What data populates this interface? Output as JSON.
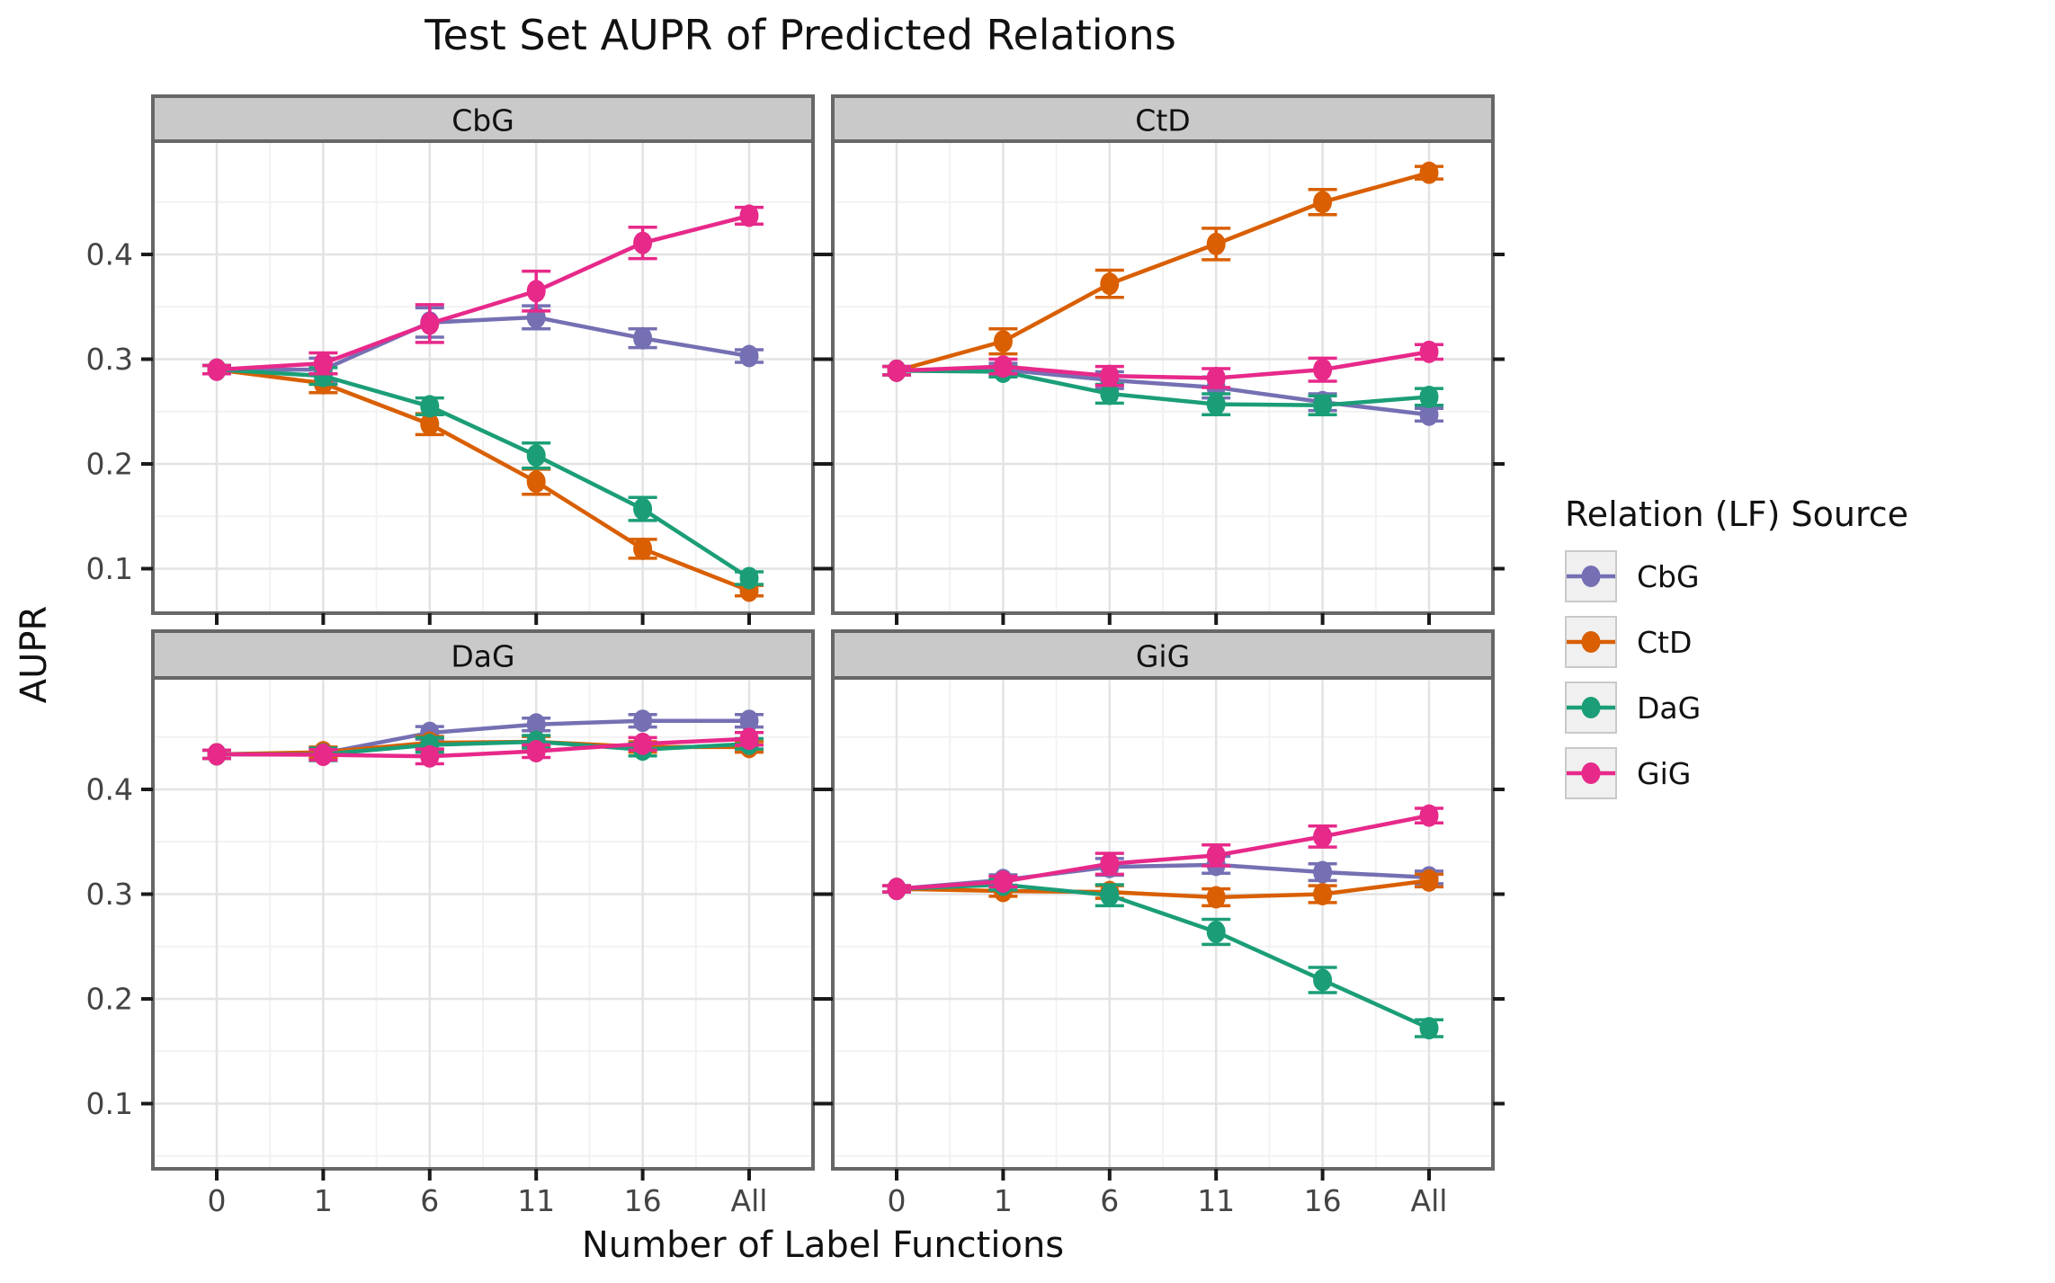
{
  "title": "Test Set AUPR of Predicted Relations",
  "axes": {
    "x_title": "Number of Label Functions",
    "y_title": "AUPR"
  },
  "legend": {
    "title": "Relation (LF) Source",
    "position": "right",
    "entries": [
      {
        "label": "CbG",
        "color": "#7570b3"
      },
      {
        "label": "CtD",
        "color": "#d95f02"
      },
      {
        "label": "DaG",
        "color": "#1b9e77"
      },
      {
        "label": "GiG",
        "color": "#e7298a"
      }
    ]
  },
  "style": {
    "panel_bg": "#ffffff",
    "panel_border": "#676767",
    "strip_bg": "#c9c9c9",
    "grid_major": "#e3e3e3",
    "grid_minor": "#f2f2f2",
    "tick_color": "#1a1a1a",
    "tick_label_color": "#444444"
  },
  "chart_data": {
    "type": "line",
    "title": "Test Set AUPR of Predicted Relations",
    "xlabel": "Number of Label Functions",
    "ylabel": "AUPR",
    "facets": [
      "CbG",
      "CtD",
      "DaG",
      "GiG"
    ],
    "x_labels": [
      "0",
      "1",
      "6",
      "11",
      "16",
      "All"
    ],
    "y_ticks": [
      0.1,
      0.2,
      0.3,
      0.4
    ],
    "ylim_top_row": [
      0.057,
      0.508
    ],
    "ylim_bottom_row": [
      0.038,
      0.507
    ],
    "grid": true,
    "legend_position": "right",
    "panels": [
      {
        "facet": "CbG",
        "series": [
          {
            "name": "CbG",
            "values": [
              0.29,
              0.29,
              0.335,
              0.34,
              0.32,
              0.303
            ],
            "err": [
              0.004,
              0.011,
              0.014,
              0.011,
              0.009,
              0.006
            ]
          },
          {
            "name": "CtD",
            "values": [
              0.29,
              0.277,
              0.238,
              0.183,
              0.119,
              0.079
            ],
            "err": [
              0.004,
              0.009,
              0.01,
              0.012,
              0.009,
              0.005
            ]
          },
          {
            "name": "DaG",
            "values": [
              0.29,
              0.284,
              0.255,
              0.208,
              0.157,
              0.091
            ],
            "err": [
              0.004,
              0.008,
              0.008,
              0.012,
              0.011,
              0.006
            ]
          },
          {
            "name": "GiG",
            "values": [
              0.29,
              0.296,
              0.334,
              0.365,
              0.411,
              0.437
            ],
            "err": [
              0.004,
              0.01,
              0.018,
              0.019,
              0.015,
              0.008
            ]
          }
        ]
      },
      {
        "facet": "CtD",
        "series": [
          {
            "name": "CbG",
            "values": [
              0.289,
              0.29,
              0.28,
              0.273,
              0.259,
              0.247
            ],
            "err": [
              0.004,
              0.006,
              0.008,
              0.01,
              0.008,
              0.006
            ]
          },
          {
            "name": "CtD",
            "values": [
              0.289,
              0.317,
              0.372,
              0.41,
              0.45,
              0.478
            ],
            "err": [
              0.004,
              0.012,
              0.013,
              0.015,
              0.012,
              0.006
            ]
          },
          {
            "name": "DaG",
            "values": [
              0.289,
              0.288,
              0.267,
              0.257,
              0.256,
              0.264
            ],
            "err": [
              0.004,
              0.005,
              0.009,
              0.01,
              0.009,
              0.008
            ]
          },
          {
            "name": "GiG",
            "values": [
              0.289,
              0.293,
              0.284,
              0.282,
              0.29,
              0.307
            ],
            "err": [
              0.004,
              0.007,
              0.009,
              0.009,
              0.011,
              0.007
            ]
          }
        ]
      },
      {
        "facet": "DaG",
        "series": [
          {
            "name": "CbG",
            "values": [
              0.4335,
              0.4345,
              0.454,
              0.462,
              0.4655,
              0.4655
            ],
            "err": [
              0.004,
              0.005,
              0.006,
              0.006,
              0.006,
              0.006
            ]
          },
          {
            "name": "CtD",
            "values": [
              0.4335,
              0.4355,
              0.4445,
              0.4455,
              0.4405,
              0.4405
            ],
            "err": [
              0.004,
              0.005,
              0.006,
              0.005,
              0.005,
              0.005
            ]
          },
          {
            "name": "DaG",
            "values": [
              0.4335,
              0.4335,
              0.4425,
              0.4455,
              0.438,
              0.4435
            ],
            "err": [
              0.004,
              0.006,
              0.007,
              0.006,
              0.006,
              0.005
            ]
          },
          {
            "name": "GiG",
            "values": [
              0.4335,
              0.433,
              0.4315,
              0.4365,
              0.4435,
              0.4483
            ],
            "err": [
              0.004,
              0.005,
              0.007,
              0.006,
              0.006,
              0.006
            ]
          }
        ]
      },
      {
        "facet": "GiG",
        "series": [
          {
            "name": "CbG",
            "values": [
              0.305,
              0.3135,
              0.326,
              0.328,
              0.321,
              0.316
            ],
            "err": [
              0.003,
              0.005,
              0.008,
              0.008,
              0.008,
              0.006
            ]
          },
          {
            "name": "CtD",
            "values": [
              0.305,
              0.303,
              0.302,
              0.297,
              0.3,
              0.313
            ],
            "err": [
              0.003,
              0.005,
              0.006,
              0.008,
              0.008,
              0.006
            ]
          },
          {
            "name": "DaG",
            "values": [
              0.305,
              0.309,
              0.299,
              0.264,
              0.218,
              0.172
            ],
            "err": [
              0.003,
              0.005,
              0.01,
              0.012,
              0.012,
              0.008
            ]
          },
          {
            "name": "GiG",
            "values": [
              0.305,
              0.312,
              0.329,
              0.337,
              0.355,
              0.375
            ],
            "err": [
              0.003,
              0.005,
              0.01,
              0.01,
              0.01,
              0.007
            ]
          }
        ]
      }
    ]
  }
}
